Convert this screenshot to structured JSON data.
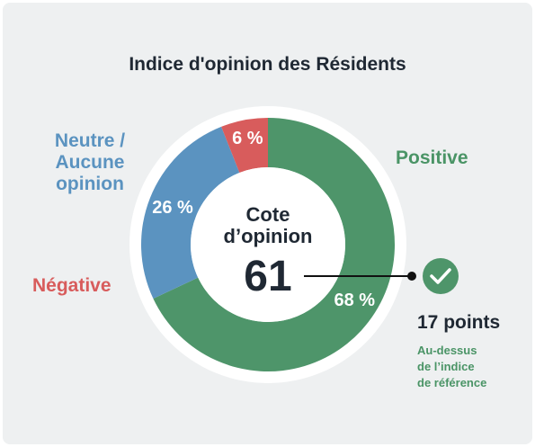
{
  "title": "Indice d'opinion des Résidents",
  "chart_data": {
    "type": "pie",
    "style": "donut",
    "categories": [
      "Positive",
      "Neutre / Aucune opinion",
      "Négative"
    ],
    "values": [
      68,
      26,
      6
    ],
    "value_labels": [
      "68 %",
      "26 %",
      "6 %"
    ],
    "colors": [
      "#4e956a",
      "#5b93c0",
      "#d85c5c"
    ],
    "center": {
      "label_line1": "Cote",
      "label_line2": "d’opinion",
      "value": "61"
    }
  },
  "labels": {
    "positive": "Positive",
    "neutre_line1": "Neutre /",
    "neutre_line2": "Aucune",
    "neutre_line3": "opinion",
    "negative": "Négative"
  },
  "reference": {
    "icon": "check-icon",
    "icon_color": "#4e956a",
    "points": "17 points",
    "line1": "Au-dessus",
    "line2": "de l’indice",
    "line3": "de référence"
  }
}
